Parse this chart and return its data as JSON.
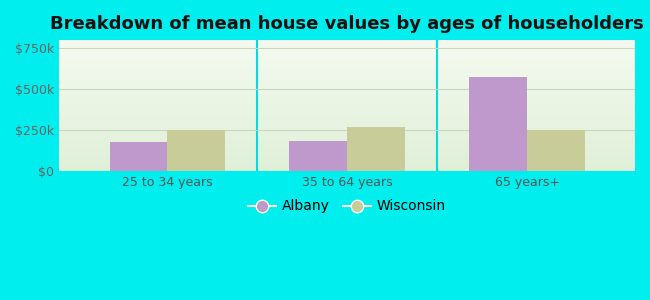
{
  "title": "Breakdown of mean house values by ages of householders",
  "categories": [
    "25 to 34 years",
    "35 to 64 years",
    "65 years+"
  ],
  "albany_values": [
    175000,
    180000,
    575000
  ],
  "wisconsin_values": [
    248000,
    268000,
    248000
  ],
  "albany_color": "#bf99cc",
  "wisconsin_color": "#c8cc99",
  "background_outer": "#00eeee",
  "background_inner_top": "#e0f0d8",
  "background_inner_bottom": "#f5faf0",
  "ylim": [
    0,
    800000
  ],
  "yticks": [
    0,
    250000,
    500000,
    750000
  ],
  "ytick_labels": [
    "$0",
    "$250k",
    "$500k",
    "$750k"
  ],
  "legend_labels": [
    "Albany",
    "Wisconsin"
  ],
  "title_fontsize": 13,
  "tick_fontsize": 9,
  "legend_fontsize": 10,
  "bar_width": 0.32,
  "grid_color": "#c8d8c0",
  "separator_color": "#00dddd",
  "axis_color": "#aaaaaa"
}
